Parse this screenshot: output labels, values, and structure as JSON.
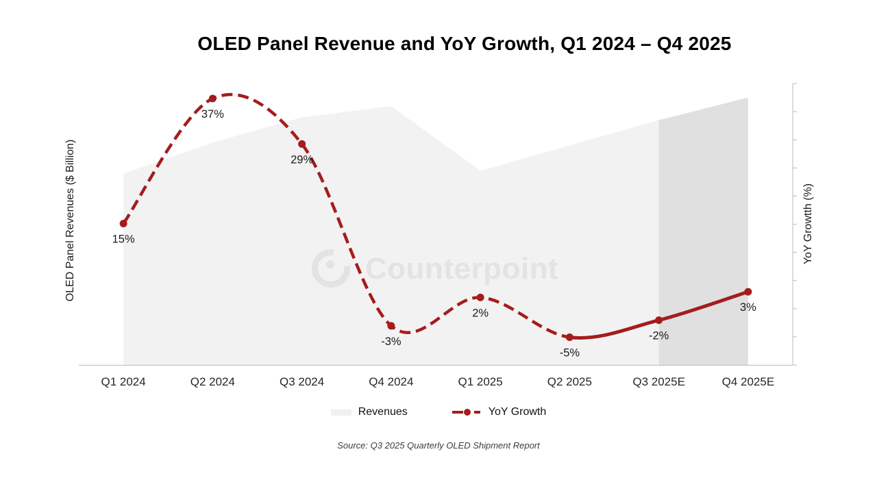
{
  "title": "OLED Panel Revenue and YoY Growth, Q1 2024 – Q4 2025",
  "left_axis": {
    "title": "OLED Panel Revenues ($ Billion)",
    "tick_labels_visible": false
  },
  "right_axis": {
    "title": "YoY Growtth (%)",
    "tick_labels_visible": false,
    "tick_count": 11,
    "range_pct": [
      -10,
      40
    ]
  },
  "legend": {
    "revenues_label": "Revenues",
    "yoy_label": "YoY Growth"
  },
  "source": "Source: Q3 2025 Quarterly OLED Shipment Report",
  "watermark": {
    "text": "Counterpoint",
    "logo": "counterpoint-ring-logo"
  },
  "colors": {
    "line_red": "#a51c1c",
    "area_fill": "#f2f2f2",
    "forecast_fill": "#e0e0e0",
    "watermark_gray": "#e3e3e3",
    "axis_gray": "#c4c4c4",
    "label_text": "#1a1a1a",
    "tick_text": "#262626"
  },
  "chart_data": {
    "type": "combo",
    "title": "OLED Panel Revenue and YoY Growth, Q1 2024 – Q4 2025",
    "xlabel": "",
    "ylabel_left": "OLED Panel Revenues ($ Billion)",
    "ylabel_right": "YoY Growtth (%)",
    "categories": [
      "Q1 2024",
      "Q2 2024",
      "Q3 2024",
      "Q4 2024",
      "Q1 2025",
      "Q2 2025",
      "Q3 2025E",
      "Q4 2025E"
    ],
    "series": [
      {
        "name": "Revenues",
        "type": "area",
        "axis": "left",
        "note": "no numeric axis labels shown; values are heights relative to plot area (0-1)",
        "values_relative": [
          0.68,
          0.79,
          0.88,
          0.92,
          0.69,
          0.78,
          0.87,
          0.95
        ],
        "forecast_start_index": 6,
        "forecast_categories": [
          "Q3 2025E",
          "Q4 2025E"
        ]
      },
      {
        "name": "YoY Growth",
        "type": "line",
        "axis": "right",
        "unit": "%",
        "values": [
          15,
          37,
          29,
          -3,
          2,
          -5,
          -2,
          3
        ],
        "data_labels": [
          "15%",
          "37%",
          "29%",
          "-3%",
          "2%",
          "-5%",
          "-2%",
          "3%"
        ],
        "dashed_until_index": 5,
        "smooth": true
      }
    ],
    "right_ylim": [
      -10,
      40
    ],
    "grid": false,
    "legend_position": "bottom"
  }
}
